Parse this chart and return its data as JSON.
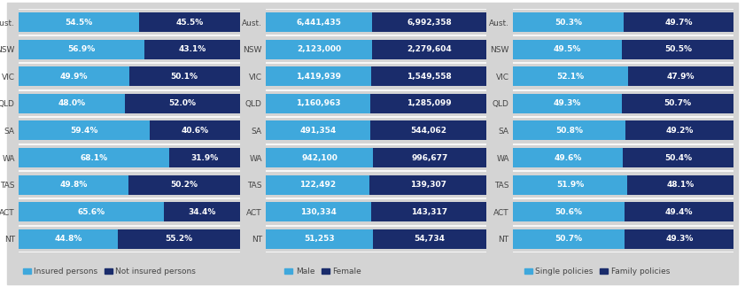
{
  "states": [
    "Aust.",
    "NSW",
    "VIC",
    "QLD",
    "SA",
    "WA",
    "TAS",
    "ACT",
    "NT"
  ],
  "chart1": {
    "insured": [
      54.5,
      56.9,
      49.9,
      48.0,
      59.4,
      68.1,
      49.8,
      65.6,
      44.8
    ],
    "not_insured": [
      45.5,
      43.1,
      50.1,
      52.0,
      40.6,
      31.9,
      50.2,
      34.4,
      55.2
    ],
    "color1": "#3fa8dc",
    "color2": "#1a2c6b",
    "legend1": "Insured persons",
    "legend2": "Not insured persons"
  },
  "chart2": {
    "male": [
      6441435,
      2123000,
      1419939,
      1160963,
      491354,
      942100,
      122492,
      130334,
      51253
    ],
    "female": [
      6992358,
      2279604,
      1549558,
      1285099,
      544062,
      996677,
      139307,
      143317,
      54734
    ],
    "male_labels": [
      "6,441,435",
      "2,123,000",
      "1,419,939",
      "1,160,963",
      "491,354",
      "942,100",
      "122,492",
      "130,334",
      "51,253"
    ],
    "female_labels": [
      "6,992,358",
      "2,279,604",
      "1,549,558",
      "1,285,099",
      "544,062",
      "996,677",
      "139,307",
      "143,317",
      "54,734"
    ],
    "color1": "#3fa8dc",
    "color2": "#1a2c6b",
    "legend1": "Male",
    "legend2": "Female"
  },
  "chart3": {
    "single": [
      50.3,
      49.5,
      52.1,
      49.3,
      50.8,
      49.6,
      51.9,
      50.6,
      50.7
    ],
    "family": [
      49.7,
      50.5,
      47.9,
      50.7,
      49.2,
      50.4,
      48.1,
      49.4,
      49.3
    ],
    "color1": "#3fa8dc",
    "color2": "#1a2c6b",
    "legend1": "Single policies",
    "legend2": "Family policies"
  },
  "bg_color": "#d4d4d4",
  "outer_color": "#ffffff",
  "bar_height": 0.72,
  "text_color": "#ffffff",
  "label_color": "#444444",
  "fontsize_bar": 6.5,
  "fontsize_label": 6.5,
  "fontsize_legend": 6.5,
  "row_sep_color": "#ffffff"
}
